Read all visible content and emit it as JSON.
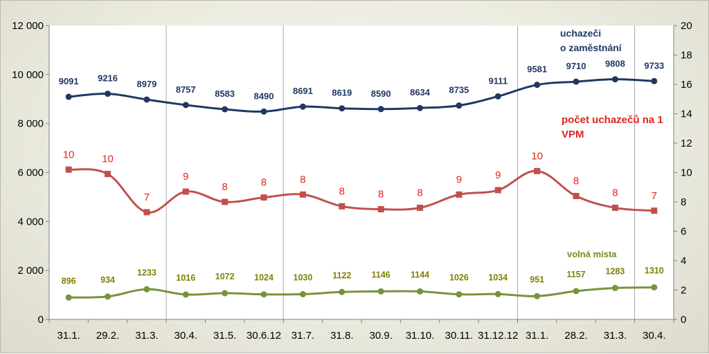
{
  "chart_data": {
    "type": "line",
    "categories": [
      "31.1.",
      "29.2.",
      "31.3.",
      "30.4.",
      "31.5.",
      "30.6.12",
      "31.7.",
      "31.8.",
      "30.9.",
      "31.10.",
      "30.11.",
      "31.12.12",
      "31.1.",
      "28.2.",
      "31.3.",
      "30.4."
    ],
    "left_axis": {
      "ylim": [
        0,
        12000
      ],
      "ticks": [
        "0",
        "2 000",
        "4 000",
        "6 000",
        "8 000",
        "10 000",
        "12 000"
      ]
    },
    "right_axis": {
      "ylim": [
        0,
        20
      ],
      "ticks": [
        "0",
        "2",
        "4",
        "6",
        "8",
        "10",
        "12",
        "14",
        "16",
        "18",
        "20"
      ]
    },
    "series": [
      {
        "name": "uchazeči o zaměstnání",
        "axis": "left",
        "color": "#1f3864",
        "marker": "circle",
        "values": [
          9091,
          9216,
          8979,
          8757,
          8583,
          8490,
          8691,
          8619,
          8590,
          8634,
          8735,
          9111,
          9581,
          9710,
          9808,
          9733
        ],
        "labels": [
          "9091",
          "9216",
          "8979",
          "8757",
          "8583",
          "8490",
          "8691",
          "8619",
          "8590",
          "8634",
          "8735",
          "9111",
          "9581",
          "9710",
          "9808",
          "9733"
        ]
      },
      {
        "name": "počet uchazečů na 1 VPM",
        "axis": "right",
        "color": "#c0504d",
        "marker": "square",
        "values": [
          10.2,
          9.9,
          7.3,
          8.7,
          8.0,
          8.3,
          8.5,
          7.7,
          7.5,
          7.6,
          8.5,
          8.8,
          10.1,
          8.4,
          7.6,
          7.4
        ],
        "labels": [
          "10",
          "10",
          "7",
          "9",
          "8",
          "8",
          "8",
          "8",
          "8",
          "8",
          "9",
          "9",
          "10",
          "8",
          "8",
          "7"
        ]
      },
      {
        "name": "volná místa",
        "axis": "left",
        "color": "#77933c",
        "marker": "circle",
        "values": [
          896,
          934,
          1233,
          1016,
          1072,
          1024,
          1030,
          1122,
          1146,
          1144,
          1026,
          1034,
          951,
          1157,
          1283,
          1310
        ],
        "labels": [
          "896",
          "934",
          "1233",
          "1016",
          "1072",
          "1024",
          "1030",
          "1122",
          "1146",
          "1144",
          "1026",
          "1034",
          "951",
          "1157",
          "1283",
          "1310"
        ]
      }
    ],
    "annotations": {
      "blue_line1": "uchazeči",
      "blue_line2": "o zaměstnání",
      "red_line1": "počet uchazečů na 1",
      "red_line2": "VPM",
      "green": "volná místa"
    },
    "grid": false,
    "separators_after": [
      "31.3.",
      "30.6.12",
      "31.12.12",
      "31.3."
    ]
  }
}
